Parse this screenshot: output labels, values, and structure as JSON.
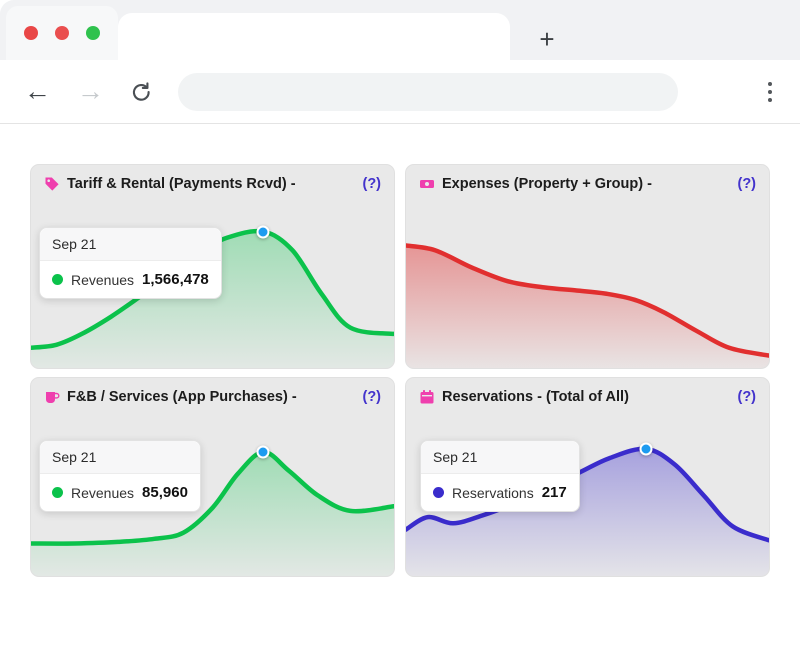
{
  "browser": {
    "traffic_lights": [
      "#e94747",
      "#ea4f4f",
      "#2fc24e"
    ],
    "new_tab_label": "+",
    "icons": {
      "back": "←",
      "forward": "→"
    },
    "url_value": "",
    "url_placeholder": ""
  },
  "cards": [
    {
      "title": "Tariff & Rental (Payments Rcvd) -",
      "help_label": "(?)",
      "tooltip": {
        "date": "Sep 21",
        "series": "Revenues",
        "value": "1,566,478"
      }
    },
    {
      "title": "Expenses (Property + Group) -",
      "help_label": "(?)"
    },
    {
      "title": "F&B / Services (App Purchases) -",
      "help_label": "(?)",
      "tooltip": {
        "date": "Sep 21",
        "series": "Revenues",
        "value": "85,960"
      }
    },
    {
      "title": "Reservations - (Total of All)",
      "help_label": "(?)",
      "tooltip": {
        "date": "Sep 21",
        "series": "Reservations",
        "value": "217"
      }
    }
  ],
  "marker_color": "#1d9bf0",
  "chart_data": [
    {
      "type": "area",
      "title": "Tariff & Rental (Payments Rcvd)",
      "series_name": "Revenues",
      "color": "#0bc24b",
      "fill_top_opacity": 0.33,
      "x": [
        0,
        7,
        14,
        22,
        30,
        38,
        46,
        54,
        64,
        72,
        80,
        88,
        100
      ],
      "values": [
        13,
        15,
        22,
        33,
        46,
        60,
        74,
        84,
        88,
        76,
        48,
        26,
        22
      ],
      "marker_index": 8,
      "marker_label": "Sep 21",
      "marker_value": "1,566,478"
    },
    {
      "type": "area",
      "title": "Expenses (Property + Group)",
      "series_name": "Expenses",
      "color": "#e12f2f",
      "fill_top_opacity": 0.45,
      "x": [
        0,
        8,
        18,
        28,
        38,
        47,
        55,
        63,
        71,
        80,
        89,
        100
      ],
      "values": [
        79,
        76,
        65,
        56,
        52,
        50,
        48,
        44,
        36,
        24,
        13,
        8
      ]
    },
    {
      "type": "area",
      "title": "F&B / Services (App Purchases)",
      "series_name": "Revenues",
      "color": "#0bc24b",
      "fill_top_opacity": 0.33,
      "x": [
        0,
        12,
        24,
        34,
        42,
        50,
        57,
        64,
        71,
        79,
        88,
        100
      ],
      "values": [
        21,
        21,
        22,
        24,
        28,
        44,
        66,
        80,
        68,
        52,
        42,
        45
      ],
      "marker_index": 7,
      "marker_label": "Sep 21",
      "marker_value": "85,960"
    },
    {
      "type": "area",
      "title": "Reservations (Total of All)",
      "series_name": "Reservations",
      "color": "#3a2ccc",
      "fill_top_opacity": 0.38,
      "x": [
        0,
        6,
        13,
        21,
        30,
        39,
        48,
        56,
        66,
        74,
        82,
        90,
        100
      ],
      "values": [
        30,
        38,
        34,
        39,
        47,
        57,
        67,
        76,
        82,
        72,
        52,
        32,
        23
      ],
      "marker_index": 8,
      "marker_label": "Sep 21",
      "marker_value": "217"
    }
  ]
}
